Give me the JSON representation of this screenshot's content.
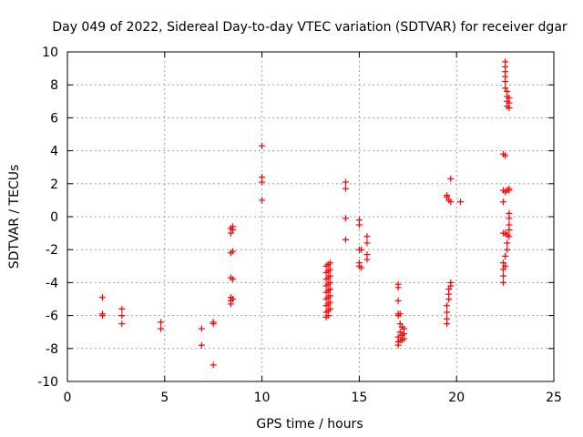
{
  "chart_data": {
    "type": "scatter",
    "title": "Day 049 of 2022, Sidereal Day-to-day VTEC variation (SDTVAR) for receiver dgar",
    "xlabel": "GPS time / hours",
    "ylabel": "SDTVAR / TECUs",
    "xlim": [
      0,
      25
    ],
    "ylim": [
      -10,
      10
    ],
    "xticks": [
      0,
      5,
      10,
      15,
      20,
      25
    ],
    "yticks": [
      -10,
      -8,
      -6,
      -4,
      -2,
      0,
      2,
      4,
      6,
      8,
      10
    ],
    "grid": true,
    "marker": "+",
    "series": [
      {
        "name": "SDTVAR",
        "color": "#ff0000",
        "points": [
          [
            1.8,
            -4.9
          ],
          [
            1.8,
            -5.9
          ],
          [
            1.8,
            -6.0
          ],
          [
            2.8,
            -5.6
          ],
          [
            2.8,
            -6.0
          ],
          [
            2.8,
            -6.5
          ],
          [
            4.8,
            -6.4
          ],
          [
            4.8,
            -6.8
          ],
          [
            6.9,
            -6.8
          ],
          [
            6.9,
            -7.8
          ],
          [
            7.5,
            -6.4
          ],
          [
            7.5,
            -6.5
          ],
          [
            7.5,
            -9.0
          ],
          [
            8.4,
            -0.7
          ],
          [
            8.4,
            -1.0
          ],
          [
            8.4,
            -2.2
          ],
          [
            8.4,
            -3.7
          ],
          [
            8.4,
            -4.9
          ],
          [
            8.4,
            -5.1
          ],
          [
            8.4,
            -5.3
          ],
          [
            8.5,
            -0.6
          ],
          [
            8.5,
            -0.8
          ],
          [
            8.5,
            -2.1
          ],
          [
            8.5,
            -3.8
          ],
          [
            8.5,
            -5.0
          ],
          [
            10.0,
            4.3
          ],
          [
            10.0,
            2.4
          ],
          [
            10.0,
            2.1
          ],
          [
            10.0,
            1.0
          ],
          [
            13.3,
            -3.0
          ],
          [
            13.3,
            -3.4
          ],
          [
            13.3,
            -3.8
          ],
          [
            13.3,
            -4.2
          ],
          [
            13.3,
            -4.6
          ],
          [
            13.3,
            -5.0
          ],
          [
            13.3,
            -5.4
          ],
          [
            13.3,
            -5.8
          ],
          [
            13.3,
            -6.1
          ],
          [
            13.4,
            -2.9
          ],
          [
            13.4,
            -3.3
          ],
          [
            13.4,
            -3.7
          ],
          [
            13.4,
            -4.1
          ],
          [
            13.4,
            -4.5
          ],
          [
            13.4,
            -4.9
          ],
          [
            13.4,
            -5.3
          ],
          [
            13.4,
            -5.7
          ],
          [
            13.4,
            -6.0
          ],
          [
            13.5,
            -2.8
          ],
          [
            13.5,
            -3.2
          ],
          [
            13.5,
            -3.6
          ],
          [
            13.5,
            -4.0
          ],
          [
            13.5,
            -4.4
          ],
          [
            13.5,
            -4.8
          ],
          [
            13.5,
            -5.2
          ],
          [
            13.5,
            -5.6
          ],
          [
            14.3,
            2.1
          ],
          [
            14.3,
            1.7
          ],
          [
            14.3,
            -0.1
          ],
          [
            14.3,
            -1.4
          ],
          [
            15.0,
            -0.2
          ],
          [
            15.0,
            -0.5
          ],
          [
            15.0,
            -2.0
          ],
          [
            15.0,
            -2.8
          ],
          [
            15.0,
            -3.0
          ],
          [
            15.1,
            -2.0
          ],
          [
            15.1,
            -3.1
          ],
          [
            15.4,
            -1.2
          ],
          [
            15.4,
            -1.6
          ],
          [
            15.4,
            -2.3
          ],
          [
            15.4,
            -2.6
          ],
          [
            17.0,
            -4.1
          ],
          [
            17.0,
            -4.3
          ],
          [
            17.0,
            -5.1
          ],
          [
            17.0,
            -5.9
          ],
          [
            17.0,
            -6.0
          ],
          [
            17.0,
            -7.3
          ],
          [
            17.0,
            -7.6
          ],
          [
            17.0,
            -7.8
          ],
          [
            17.1,
            -5.9
          ],
          [
            17.1,
            -6.5
          ],
          [
            17.1,
            -7.0
          ],
          [
            17.1,
            -7.5
          ],
          [
            17.2,
            -6.7
          ],
          [
            17.2,
            -7.2
          ],
          [
            17.2,
            -7.5
          ],
          [
            17.3,
            -6.8
          ],
          [
            17.3,
            -7.1
          ],
          [
            17.3,
            -7.4
          ],
          [
            19.5,
            -6.5
          ],
          [
            19.5,
            -6.2
          ],
          [
            19.5,
            -5.8
          ],
          [
            19.5,
            -5.4
          ],
          [
            19.5,
            1.2
          ],
          [
            19.5,
            1.3
          ],
          [
            19.6,
            -5.0
          ],
          [
            19.6,
            -4.7
          ],
          [
            19.6,
            -4.4
          ],
          [
            19.6,
            1.0
          ],
          [
            19.7,
            -4.2
          ],
          [
            19.7,
            -4.0
          ],
          [
            19.7,
            2.3
          ],
          [
            19.7,
            0.9
          ],
          [
            20.2,
            0.9
          ],
          [
            22.4,
            3.8
          ],
          [
            22.4,
            1.6
          ],
          [
            22.4,
            0.9
          ],
          [
            22.4,
            -1.0
          ],
          [
            22.4,
            -2.8
          ],
          [
            22.4,
            -3.2
          ],
          [
            22.4,
            -3.6
          ],
          [
            22.4,
            -4.0
          ],
          [
            22.5,
            9.4
          ],
          [
            22.5,
            9.1
          ],
          [
            22.5,
            8.8
          ],
          [
            22.5,
            8.5
          ],
          [
            22.5,
            8.2
          ],
          [
            22.5,
            7.8
          ],
          [
            22.5,
            3.7
          ],
          [
            22.5,
            1.5
          ],
          [
            22.5,
            -1.0
          ],
          [
            22.5,
            -2.4
          ],
          [
            22.5,
            -3.0
          ],
          [
            22.6,
            7.6
          ],
          [
            22.6,
            7.3
          ],
          [
            22.6,
            7.0
          ],
          [
            22.6,
            6.7
          ],
          [
            22.6,
            1.6
          ],
          [
            22.6,
            -1.1
          ],
          [
            22.6,
            -1.6
          ],
          [
            22.6,
            -2.0
          ],
          [
            22.7,
            7.2
          ],
          [
            22.7,
            6.9
          ],
          [
            22.7,
            6.6
          ],
          [
            22.7,
            1.7
          ],
          [
            22.7,
            1.6
          ],
          [
            22.7,
            0.2
          ],
          [
            22.7,
            -0.1
          ],
          [
            22.7,
            -0.5
          ],
          [
            22.7,
            -0.8
          ],
          [
            22.7,
            -1.2
          ]
        ]
      }
    ]
  }
}
